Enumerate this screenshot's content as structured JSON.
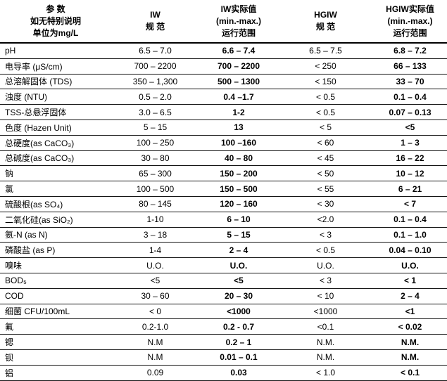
{
  "table": {
    "header": {
      "param": [
        "参  数",
        "如无特别说明",
        "单位为mg/L"
      ],
      "iw_spec": [
        "IW",
        "规  范"
      ],
      "iw_actual": [
        "IW实际值",
        "(min.-max.)",
        "运行范围"
      ],
      "hgiw_spec": [
        "HGIW",
        "规  范"
      ],
      "hgiw_actual": [
        "HGIW实际值",
        "(min.-max.)",
        "运行范围"
      ]
    },
    "rows": [
      {
        "param": "pH",
        "iw_spec": "6.5 – 7.0",
        "iw_actual": "6.6 – 7.4",
        "hgiw_spec": "6.5 – 7.5",
        "hgiw_actual": "6.8 – 7.2"
      },
      {
        "param": "电导率 (μS/cm)",
        "iw_spec": "700 – 2200",
        "iw_actual": "700 – 2200",
        "hgiw_spec": "< 250",
        "hgiw_actual": "66 – 133"
      },
      {
        "param": "总溶解固体 (TDS)",
        "iw_spec": "350 – 1,300",
        "iw_actual": "500 – 1300",
        "hgiw_spec": "< 150",
        "hgiw_actual": "33 – 70"
      },
      {
        "param": "浊度 (NTU)",
        "iw_spec": "0.5 – 2.0",
        "iw_actual": "0.4 –1.7",
        "hgiw_spec": "< 0.5",
        "hgiw_actual": "0.1 – 0.4"
      },
      {
        "param": "TSS-总悬浮固体",
        "iw_spec": "3.0 – 6.5",
        "iw_actual": "1-2",
        "hgiw_spec": "< 0.5",
        "hgiw_actual": "0.07 – 0.13"
      },
      {
        "param": "色度 (Hazen Unit)",
        "iw_spec": "5 – 15",
        "iw_actual": "13",
        "hgiw_spec": "< 5",
        "hgiw_actual": "<5"
      },
      {
        "param": "总硬度(as CaCO₃)",
        "iw_spec": "100 – 250",
        "iw_actual": "100 –160",
        "hgiw_spec": "< 60",
        "hgiw_actual": "1 – 3"
      },
      {
        "param": "总碱度(as CaCO₃)",
        "iw_spec": "30 – 80",
        "iw_actual": "40 – 80",
        "hgiw_spec": "< 45",
        "hgiw_actual": "16 – 22"
      },
      {
        "param": "钠",
        "iw_spec": "65 – 300",
        "iw_actual": "150 – 200",
        "hgiw_spec": "< 50",
        "hgiw_actual": "10 – 12"
      },
      {
        "param": "氯",
        "iw_spec": "100 – 500",
        "iw_actual": "150 – 500",
        "hgiw_spec": "< 55",
        "hgiw_actual": "6 – 21"
      },
      {
        "param": "硫酸根(as SO₄)",
        "iw_spec": "80 – 145",
        "iw_actual": "120 – 160",
        "hgiw_spec": "< 30",
        "hgiw_actual": "< 7"
      },
      {
        "param": "二氧化硅(as SiO₂)",
        "iw_spec": "1-10",
        "iw_actual": "6 – 10",
        "hgiw_spec": "<2.0",
        "hgiw_actual": "0.1 – 0.4"
      },
      {
        "param": "氨-N (as N)",
        "iw_spec": "3 – 18",
        "iw_actual": "5 – 15",
        "hgiw_spec": "< 3",
        "hgiw_actual": "0.1 – 1.0"
      },
      {
        "param": "磷酸盐 (as P)",
        "iw_spec": "1-4",
        "iw_actual": "2 – 4",
        "hgiw_spec": "< 0.5",
        "hgiw_actual": "0.04 – 0.10"
      },
      {
        "param": "嗅味",
        "iw_spec": "U.O.",
        "iw_actual": "U.O.",
        "hgiw_spec": "U.O.",
        "hgiw_actual": "U.O."
      },
      {
        "param": "BOD₅",
        "iw_spec": "<5",
        "iw_actual": "<5",
        "hgiw_spec": "< 3",
        "hgiw_actual": "< 1"
      },
      {
        "param": "COD",
        "iw_spec": "30 – 60",
        "iw_actual": "20 – 30",
        "hgiw_spec": "< 10",
        "hgiw_actual": "2 – 4"
      },
      {
        "param": "细菌 CFU/100mL",
        "iw_spec": "< 0",
        "iw_actual": "<1000",
        "hgiw_spec": "<1000",
        "hgiw_actual": "<1"
      },
      {
        "param": "氟",
        "iw_spec": "0.2-1.0",
        "iw_actual": "0.2 - 0.7",
        "hgiw_spec": "<0.1",
        "hgiw_actual": "< 0.02"
      },
      {
        "param": "锶",
        "iw_spec": "N.M",
        "iw_actual": "0.2 – 1",
        "hgiw_spec": "N.M.",
        "hgiw_actual": "N.M."
      },
      {
        "param": "钡",
        "iw_spec": "N.M",
        "iw_actual": "0.01 – 0.1",
        "hgiw_spec": "N.M.",
        "hgiw_actual": "N.M."
      },
      {
        "param": "铝",
        "iw_spec": "0.09",
        "iw_actual": "0.03",
        "hgiw_spec": "< 1.0",
        "hgiw_actual": "< 0.1"
      }
    ]
  }
}
